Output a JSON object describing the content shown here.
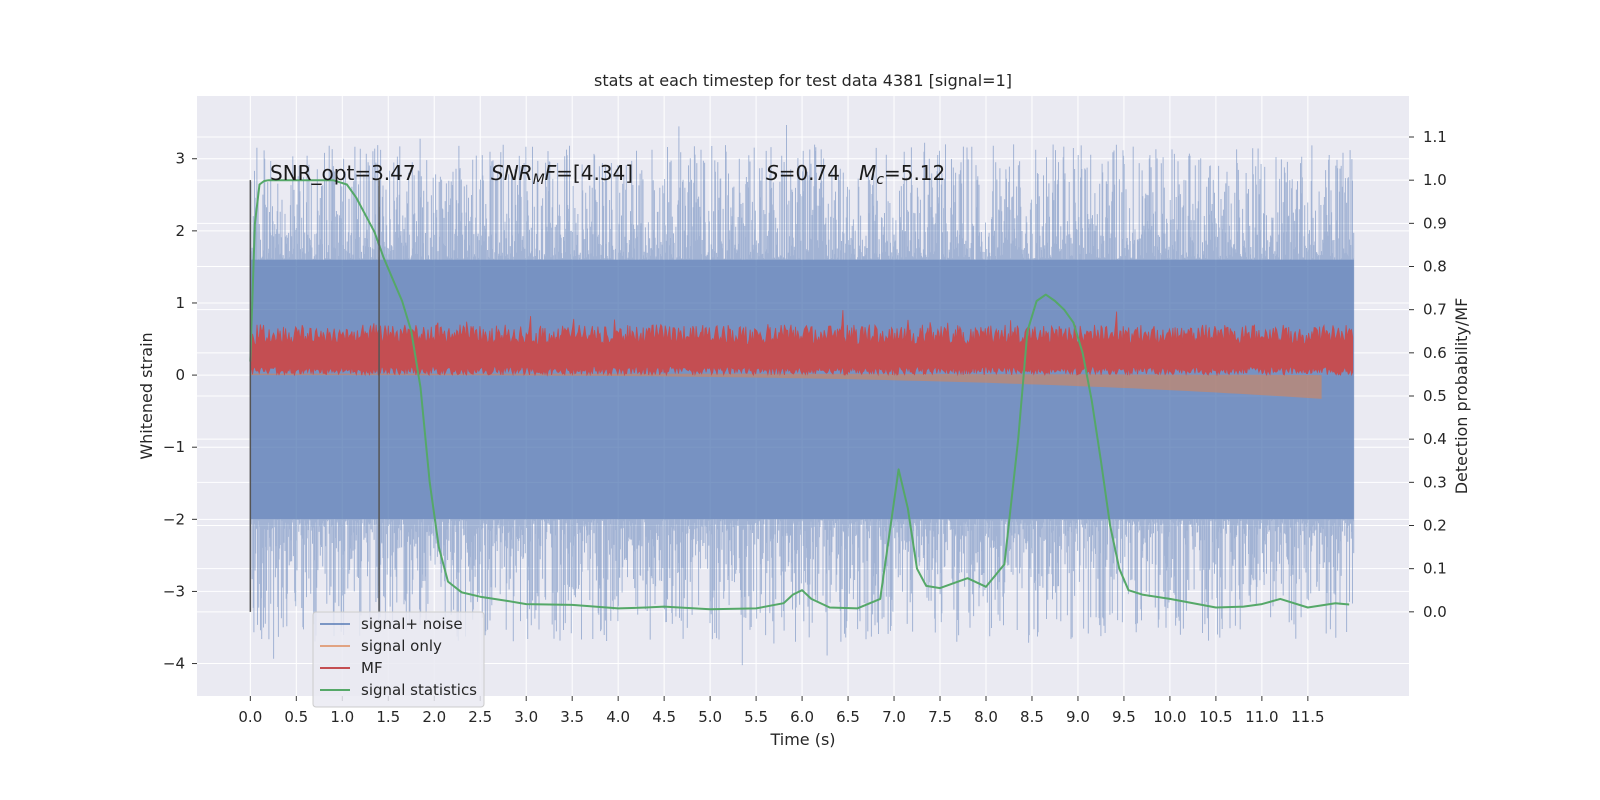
{
  "chart_data": {
    "type": "line",
    "title": "stats at each timestep for test data 4381 [signal=1]",
    "xlabel": "Time (s)",
    "ylabel": "Whitened strain",
    "y2label": "Detection probability/MF",
    "xlim": [
      -0.58,
      12.6
    ],
    "ylim": [
      -4.45,
      3.87
    ],
    "y2lim": [
      -0.195,
      1.195
    ],
    "xticks": [
      0.0,
      0.5,
      1.0,
      1.5,
      2.0,
      2.5,
      3.0,
      3.5,
      4.0,
      4.5,
      5.0,
      5.5,
      6.0,
      6.5,
      7.0,
      7.5,
      8.0,
      8.5,
      9.0,
      9.5,
      10.0,
      10.5,
      11.0,
      11.5
    ],
    "xtick_labels": [
      "0.0",
      "0.5",
      "1.0",
      "1.5",
      "2.0",
      "2.5",
      "3.0",
      "3.5",
      "4.0",
      "4.5",
      "5.0",
      "5.5",
      "6.0",
      "6.5",
      "7.0",
      "7.5",
      "8.0",
      "8.5",
      "9.0",
      "9.5",
      "10.0",
      "10.5",
      "11.0",
      "11.5"
    ],
    "yticks": [
      -4,
      -3,
      -2,
      -1,
      0,
      1,
      2,
      3
    ],
    "ytick_labels": [
      "−4",
      "−3",
      "−2",
      "−1",
      "0",
      "1",
      "2",
      "3"
    ],
    "y2ticks": [
      0.0,
      0.1,
      0.2,
      0.3,
      0.4,
      0.5,
      0.6,
      0.7,
      0.8,
      0.9,
      1.0,
      1.1
    ],
    "y2tick_labels": [
      "0.0",
      "0.1",
      "0.2",
      "0.3",
      "0.4",
      "0.5",
      "0.6",
      "0.7",
      "0.8",
      "0.9",
      "1.0",
      "1.1"
    ],
    "grid": true,
    "legend_position": "lower-left",
    "series": [
      {
        "name": "signal+ noise",
        "color": "#4c72b0",
        "axis": "left",
        "x_range": [
          0.0,
          12.0
        ],
        "band": [
          -2.0,
          1.6
        ],
        "peaks": [
          -4.1,
          3.5
        ]
      },
      {
        "name": "signal only",
        "color": "#dd8452",
        "axis": "left",
        "x_range": [
          0.0,
          11.65
        ],
        "envelope": {
          "start": 0.0,
          "end": [
            -0.35,
            0.0
          ]
        }
      },
      {
        "name": "MF",
        "color": "#c44e52",
        "axis": "left",
        "x_range": [
          0.0,
          12.0
        ],
        "band": [
          0.0,
          0.9
        ]
      },
      {
        "name": "signal statistics",
        "color": "#55a868",
        "axis": "right",
        "x": [
          0.0,
          0.05,
          0.1,
          0.15,
          0.2,
          0.3,
          0.5,
          0.7,
          0.9,
          1.05,
          1.15,
          1.25,
          1.35,
          1.45,
          1.55,
          1.65,
          1.75,
          1.85,
          1.95,
          2.05,
          2.15,
          2.3,
          2.5,
          2.8,
          3.0,
          3.5,
          4.0,
          4.3,
          4.5,
          5.0,
          5.5,
          5.8,
          5.9,
          6.0,
          6.1,
          6.3,
          6.6,
          6.85,
          6.95,
          7.05,
          7.15,
          7.25,
          7.35,
          7.5,
          7.8,
          8.0,
          8.2,
          8.35,
          8.45,
          8.55,
          8.65,
          8.75,
          8.85,
          8.95,
          9.05,
          9.15,
          9.25,
          9.35,
          9.45,
          9.55,
          9.7,
          10.0,
          10.5,
          10.8,
          11.0,
          11.2,
          11.5,
          11.8,
          11.95
        ],
        "y": [
          0.58,
          0.9,
          0.99,
          0.998,
          1.0,
          1.0,
          1.0,
          1.0,
          1.0,
          0.99,
          0.96,
          0.92,
          0.88,
          0.82,
          0.77,
          0.72,
          0.65,
          0.52,
          0.3,
          0.15,
          0.07,
          0.045,
          0.035,
          0.025,
          0.018,
          0.016,
          0.008,
          0.01,
          0.012,
          0.006,
          0.008,
          0.02,
          0.04,
          0.05,
          0.03,
          0.01,
          0.008,
          0.03,
          0.18,
          0.33,
          0.24,
          0.1,
          0.06,
          0.055,
          0.078,
          0.058,
          0.11,
          0.4,
          0.65,
          0.72,
          0.735,
          0.72,
          0.7,
          0.67,
          0.6,
          0.49,
          0.35,
          0.2,
          0.1,
          0.05,
          0.04,
          0.03,
          0.01,
          0.012,
          0.018,
          0.03,
          0.01,
          0.02,
          0.017
        ]
      }
    ],
    "vlines": [
      0.0,
      1.4
    ],
    "annotations": {
      "snr_opt": "SNR_opt=3.47",
      "snr_mf_main": "SNR",
      "snr_mf_sub": "M",
      "snr_mf_tail": "F",
      "snr_mf_value": "=[4.34]",
      "s_label": "S",
      "s_value": "=0.74",
      "mc_label": "M",
      "mc_sub": "c",
      "mc_value": "=5.12"
    }
  },
  "colors": {
    "background": "#ffffff",
    "plot_area": "#eaeaf2",
    "grid": "#ffffff"
  }
}
